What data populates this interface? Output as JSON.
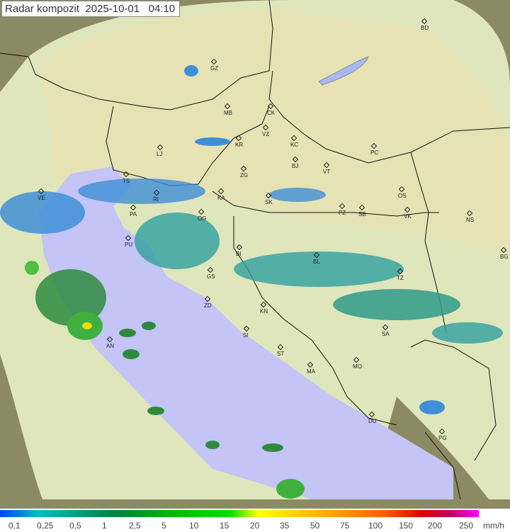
{
  "title": "Radar kompozit  2025-10-01   04:10",
  "colors": {
    "land": "#e6dfa8",
    "sea": "#c4c4f6",
    "outside": "#8b8a62",
    "coverage": "#dde8c0",
    "echo_light": "#3f8fd8",
    "echo_mid": "#30a0a0",
    "echo_heavy": "#2e8b3e",
    "echo_peak": "#e8e000"
  },
  "cities": [
    {
      "code": "BD"
    },
    {
      "code": "GZ"
    },
    {
      "code": "MB"
    },
    {
      "code": "CK"
    },
    {
      "code": "VZ"
    },
    {
      "code": "KR"
    },
    {
      "code": "KC"
    },
    {
      "code": "LJ"
    },
    {
      "code": "PC"
    },
    {
      "code": "BJ"
    },
    {
      "code": "ZG"
    },
    {
      "code": "VT"
    },
    {
      "code": "TS"
    },
    {
      "code": "VE"
    },
    {
      "code": "RI"
    },
    {
      "code": "KA"
    },
    {
      "code": "SK"
    },
    {
      "code": "OS"
    },
    {
      "code": "PA"
    },
    {
      "code": "PZ"
    },
    {
      "code": "SB"
    },
    {
      "code": "VK"
    },
    {
      "code": "NS"
    },
    {
      "code": "OG"
    },
    {
      "code": "PU"
    },
    {
      "code": "BG"
    },
    {
      "code": "BI"
    },
    {
      "code": "BL"
    },
    {
      "code": "GS"
    },
    {
      "code": "TZ"
    },
    {
      "code": "ZD"
    },
    {
      "code": "KN"
    },
    {
      "code": "SA"
    },
    {
      "code": "SI"
    },
    {
      "code": "AN"
    },
    {
      "code": "ST"
    },
    {
      "code": "MO"
    },
    {
      "code": "MA"
    },
    {
      "code": "DU"
    },
    {
      "code": "PG"
    }
  ],
  "legend": {
    "ticks": [
      "0,1",
      "0,25",
      "0,5",
      "1",
      "2,5",
      "5",
      "10",
      "15",
      "20",
      "35",
      "50",
      "75",
      "100",
      "150",
      "200",
      "250"
    ],
    "unit": "mm/h"
  }
}
